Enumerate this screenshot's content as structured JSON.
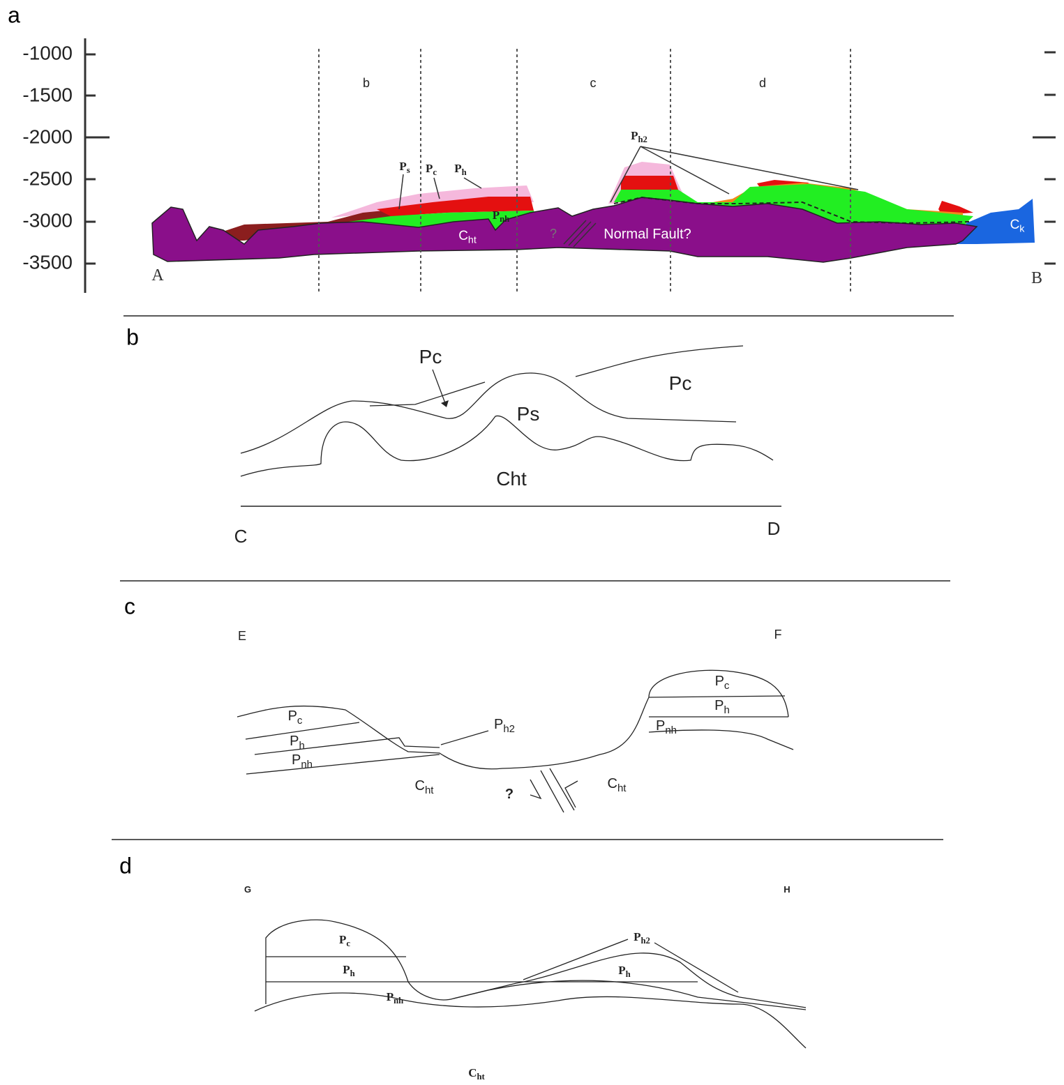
{
  "panels": [
    {
      "label": "a",
      "yticks": [
        "-1000",
        "-1500",
        "-2000",
        "-2500",
        "-3000",
        "-3500"
      ],
      "labels": [
        {
          "text": "b"
        },
        {
          "text": "c"
        },
        {
          "text": "d"
        },
        {
          "text": "A"
        },
        {
          "text": "B"
        },
        {
          "text": "P",
          "sub": "s"
        },
        {
          "text": "P",
          "sub": "c"
        },
        {
          "text": "P",
          "sub": "h"
        },
        {
          "text": "P",
          "sub": "nh"
        },
        {
          "text": "C",
          "sub": "ht"
        },
        {
          "text": "?"
        },
        {
          "text": "Normal Fault?"
        },
        {
          "text": "P",
          "sub": "h2"
        },
        {
          "text": "C",
          "sub": "k"
        }
      ]
    },
    {
      "label": "b",
      "labels": [
        {
          "text": "Pc"
        },
        {
          "text": "Pc"
        },
        {
          "text": "Ps"
        },
        {
          "text": "Cht"
        },
        {
          "text": "C"
        },
        {
          "text": "D"
        }
      ]
    },
    {
      "label": "c",
      "labels": [
        {
          "text": "E"
        },
        {
          "text": "F"
        },
        {
          "text": "P",
          "sub": "c"
        },
        {
          "text": "P",
          "sub": "h"
        },
        {
          "text": "P",
          "sub": "nh"
        },
        {
          "text": "P",
          "sub": "h2"
        },
        {
          "text": "C",
          "sub": "ht"
        },
        {
          "text": "?"
        },
        {
          "text": "C",
          "sub": "ht"
        },
        {
          "text": "P",
          "sub": "c"
        },
        {
          "text": "P",
          "sub": "h"
        },
        {
          "text": "P",
          "sub": "nh"
        }
      ]
    },
    {
      "label": "d",
      "labels": [
        {
          "text": "G"
        },
        {
          "text": "H"
        },
        {
          "text": "P",
          "sub": "c"
        },
        {
          "text": "P",
          "sub": "h"
        },
        {
          "text": "P",
          "sub": "nh"
        },
        {
          "text": "P",
          "sub": "h2"
        },
        {
          "text": "P",
          "sub": "h"
        },
        {
          "text": "C",
          "sub": "ht"
        }
      ]
    }
  ]
}
